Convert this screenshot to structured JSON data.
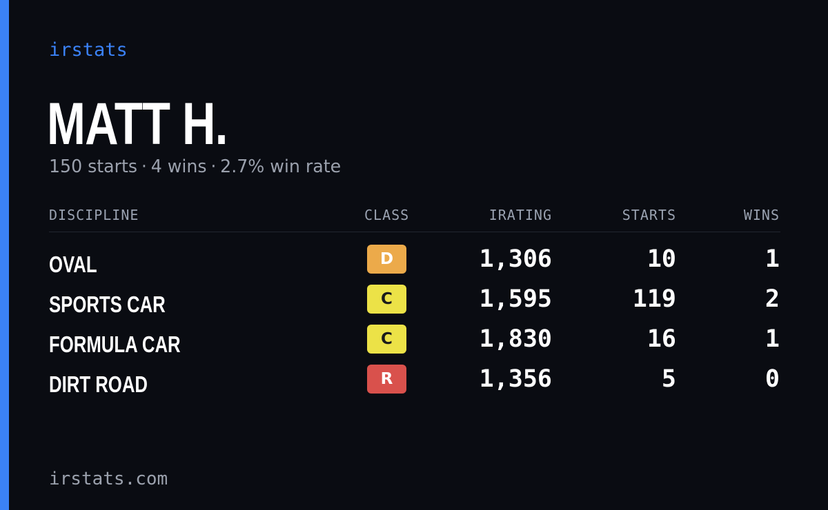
{
  "brand": "irstats",
  "driver": {
    "name": "MATT H.",
    "starts_text": "150 starts",
    "wins_text": "4 wins",
    "winrate_text": "2.7% win rate",
    "separator": "·"
  },
  "table": {
    "headers": {
      "discipline": "DISCIPLINE",
      "class": "CLASS",
      "irating": "IRATING",
      "starts": "STARTS",
      "wins": "WINS"
    },
    "rows": [
      {
        "discipline": "OVAL",
        "class": "D",
        "class_bg": "#ecaa4a",
        "class_fg": "#ffffff",
        "irating": "1,306",
        "starts": "10",
        "wins": "1"
      },
      {
        "discipline": "SPORTS CAR",
        "class": "C",
        "class_bg": "#ece247",
        "class_fg": "#1b1b1b",
        "irating": "1,595",
        "starts": "119",
        "wins": "2"
      },
      {
        "discipline": "FORMULA CAR",
        "class": "C",
        "class_bg": "#ece247",
        "class_fg": "#1b1b1b",
        "irating": "1,830",
        "starts": "16",
        "wins": "1"
      },
      {
        "discipline": "DIRT ROAD",
        "class": "R",
        "class_bg": "#d9514c",
        "class_fg": "#ffffff",
        "irating": "1,356",
        "starts": "5",
        "wins": "0"
      }
    ]
  },
  "footer": "irstats.com",
  "colors": {
    "background": "#0a0c12",
    "accent": "#3b82f6",
    "muted": "#9ba1ad"
  }
}
